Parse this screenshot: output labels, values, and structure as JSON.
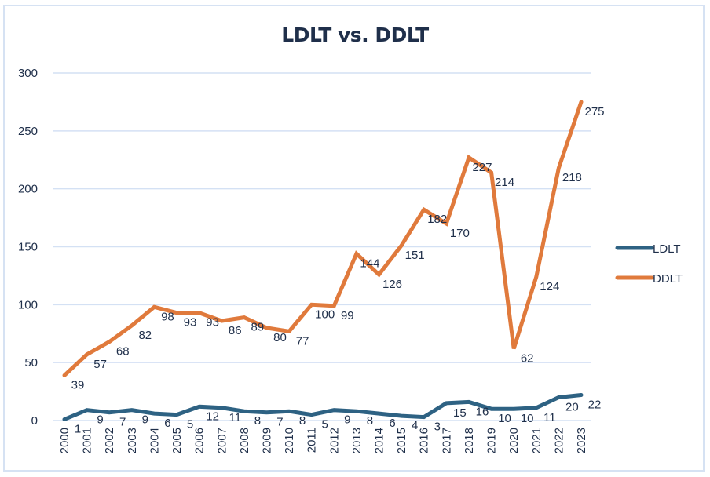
{
  "chart_data": {
    "type": "line",
    "title": "LDLT vs. DDLT",
    "xlabel": "",
    "ylabel": "",
    "x": [
      "2000",
      "2001",
      "2002",
      "2003",
      "2004",
      "2005",
      "2006",
      "2007",
      "2008",
      "2009",
      "2010",
      "2011",
      "2012",
      "2013",
      "2014",
      "2015",
      "2016",
      "2017",
      "2018",
      "2019",
      "2020",
      "2021",
      "2022",
      "2023"
    ],
    "ylim": [
      0,
      300
    ],
    "yticks": [
      "0",
      "50",
      "100",
      "150",
      "200",
      "250",
      "300"
    ],
    "grid": true,
    "legend_position": "right",
    "series": [
      {
        "name": "LDLT",
        "color": "#2e6283",
        "values": [
          1,
          9,
          7,
          9,
          6,
          5,
          12,
          11,
          8,
          7,
          8,
          5,
          9,
          8,
          6,
          4,
          3,
          15,
          16,
          10,
          10,
          11,
          20,
          22
        ]
      },
      {
        "name": "DDLT",
        "color": "#e07a3c",
        "values": [
          39,
          57,
          68,
          82,
          98,
          93,
          93,
          86,
          89,
          80,
          77,
          100,
          99,
          144,
          126,
          151,
          182,
          170,
          227,
          214,
          62,
          124,
          218,
          275
        ]
      }
    ]
  }
}
